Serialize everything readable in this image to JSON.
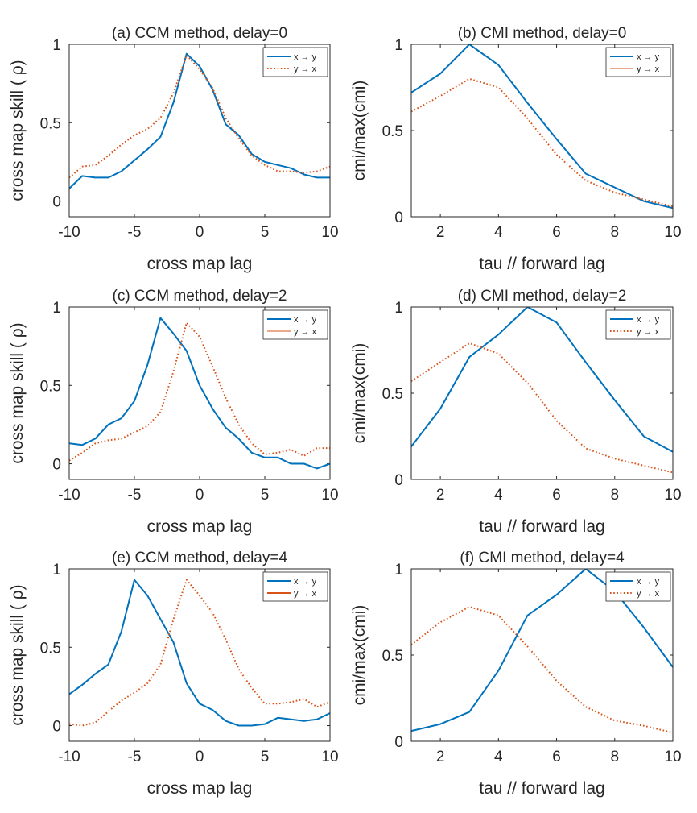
{
  "colors": {
    "series_a": "#0072BD",
    "series_b": "#D95319"
  },
  "chart_data": [
    {
      "id": "a",
      "type": "line",
      "title": "(a) CCM method, delay=0",
      "xlabel": "cross map lag",
      "ylabel": "cross map skill ( ρ)",
      "xlim": [
        -10,
        10
      ],
      "ylim": [
        -0.1,
        1
      ],
      "xticks": [
        -10,
        -5,
        0,
        5,
        10
      ],
      "yticks": [
        0,
        0.5,
        1
      ],
      "legend": "top-right",
      "series": [
        {
          "name": "x → y",
          "style": "solid",
          "width": 2,
          "x": [
            -10,
            -9,
            -8,
            -7,
            -6,
            -5,
            -4,
            -3,
            -2,
            -1,
            0,
            1,
            2,
            3,
            4,
            5,
            6,
            7,
            8,
            9,
            10
          ],
          "y": [
            0.08,
            0.16,
            0.15,
            0.15,
            0.19,
            0.26,
            0.33,
            0.41,
            0.63,
            0.94,
            0.86,
            0.71,
            0.49,
            0.42,
            0.3,
            0.25,
            0.23,
            0.21,
            0.17,
            0.15,
            0.15
          ]
        },
        {
          "name": "y → x",
          "style": "dotted",
          "width": 2,
          "x": [
            -10,
            -9,
            -8,
            -7,
            -6,
            -5,
            -4,
            -3,
            -2,
            -1,
            0,
            1,
            2,
            3,
            4,
            5,
            6,
            7,
            8,
            9,
            10
          ],
          "y": [
            0.15,
            0.22,
            0.23,
            0.29,
            0.36,
            0.42,
            0.46,
            0.53,
            0.69,
            0.93,
            0.84,
            0.72,
            0.53,
            0.4,
            0.29,
            0.23,
            0.19,
            0.19,
            0.18,
            0.19,
            0.22
          ]
        }
      ]
    },
    {
      "id": "b",
      "type": "line",
      "title": "(b) CMI method, delay=0",
      "xlabel": "tau // forward lag",
      "ylabel": "cmi/max(cmi)",
      "xlim": [
        1,
        10
      ],
      "ylim": [
        0,
        1
      ],
      "xticks": [
        2,
        4,
        6,
        8,
        10
      ],
      "yticks": [
        0,
        0.5,
        1
      ],
      "legend": "top-right",
      "series": [
        {
          "name": "x → y",
          "style": "solid",
          "width": 2,
          "x": [
            1,
            2,
            3,
            4,
            5,
            6,
            7,
            8,
            9,
            10
          ],
          "y": [
            0.72,
            0.83,
            1.0,
            0.88,
            0.66,
            0.45,
            0.25,
            0.17,
            0.09,
            0.05
          ]
        },
        {
          "name": "y → x",
          "style": "dotted",
          "width": 2,
          "legend_style": "thin",
          "x": [
            1,
            2,
            3,
            4,
            5,
            6,
            7,
            8,
            9,
            10
          ],
          "y": [
            0.61,
            0.7,
            0.8,
            0.75,
            0.57,
            0.36,
            0.21,
            0.14,
            0.1,
            0.06
          ]
        }
      ]
    },
    {
      "id": "c",
      "type": "line",
      "title": "(c) CCM method, delay=2",
      "xlabel": "cross map lag",
      "ylabel": "cross map skill ( ρ)",
      "xlim": [
        -10,
        10
      ],
      "ylim": [
        -0.1,
        1
      ],
      "xticks": [
        -10,
        -5,
        0,
        5,
        10
      ],
      "yticks": [
        0,
        0.5,
        1
      ],
      "legend": "top-right",
      "series": [
        {
          "name": "x → y",
          "style": "solid",
          "width": 2,
          "x": [
            -10,
            -9,
            -8,
            -7,
            -6,
            -5,
            -4,
            -3,
            -2,
            -1,
            0,
            1,
            2,
            3,
            4,
            5,
            6,
            7,
            8,
            9,
            10
          ],
          "y": [
            0.13,
            0.12,
            0.16,
            0.25,
            0.29,
            0.4,
            0.63,
            0.93,
            0.83,
            0.72,
            0.5,
            0.35,
            0.23,
            0.16,
            0.07,
            0.04,
            0.04,
            0.0,
            0.0,
            -0.03,
            0.0
          ]
        },
        {
          "name": "y → x",
          "style": "dotted",
          "width": 2,
          "legend_style": "thin",
          "x": [
            -10,
            -9,
            -8,
            -7,
            -6,
            -5,
            -4,
            -3,
            -2,
            -1,
            0,
            1,
            2,
            3,
            4,
            5,
            6,
            7,
            8,
            9,
            10
          ],
          "y": [
            0.02,
            0.07,
            0.13,
            0.15,
            0.16,
            0.2,
            0.24,
            0.33,
            0.59,
            0.9,
            0.81,
            0.62,
            0.42,
            0.25,
            0.13,
            0.06,
            0.07,
            0.09,
            0.05,
            0.1,
            0.1
          ]
        }
      ]
    },
    {
      "id": "d",
      "type": "line",
      "title": "(d) CMI method, delay=2",
      "xlabel": "tau // forward lag",
      "ylabel": "cmi/max(cmi)",
      "xlim": [
        1,
        10
      ],
      "ylim": [
        0,
        1
      ],
      "xticks": [
        2,
        4,
        6,
        8,
        10
      ],
      "yticks": [
        0,
        0.5,
        1
      ],
      "legend": "top-right",
      "series": [
        {
          "name": "x → y",
          "style": "solid",
          "width": 2,
          "x": [
            1,
            2,
            3,
            4,
            5,
            6,
            7,
            8,
            9,
            10
          ],
          "y": [
            0.19,
            0.41,
            0.71,
            0.84,
            1.0,
            0.91,
            0.68,
            0.46,
            0.25,
            0.16
          ]
        },
        {
          "name": "y → x",
          "style": "dotted",
          "width": 2,
          "x": [
            1,
            2,
            3,
            4,
            5,
            6,
            7,
            8,
            9,
            10
          ],
          "y": [
            0.57,
            0.68,
            0.79,
            0.73,
            0.56,
            0.34,
            0.18,
            0.12,
            0.08,
            0.04
          ]
        }
      ]
    },
    {
      "id": "e",
      "type": "line",
      "title": "(e) CCM method, delay=4",
      "xlabel": "cross map lag",
      "ylabel": "cross map skill ( ρ)",
      "xlim": [
        -10,
        10
      ],
      "ylim": [
        -0.1,
        1
      ],
      "xticks": [
        -10,
        -5,
        0,
        5,
        10
      ],
      "yticks": [
        0,
        0.5,
        1
      ],
      "legend": "top-right",
      "series": [
        {
          "name": "x → y",
          "style": "solid",
          "width": 2,
          "x": [
            -10,
            -9,
            -8,
            -7,
            -6,
            -5,
            -4,
            -3,
            -2,
            -1,
            0,
            1,
            2,
            3,
            4,
            5,
            6,
            7,
            8,
            9,
            10
          ],
          "y": [
            0.2,
            0.26,
            0.33,
            0.39,
            0.6,
            0.93,
            0.83,
            0.68,
            0.53,
            0.27,
            0.14,
            0.1,
            0.03,
            0.0,
            0.0,
            0.01,
            0.05,
            0.04,
            0.03,
            0.04,
            0.08
          ]
        },
        {
          "name": "y → x",
          "style": "dotted",
          "width": 2,
          "legend_style": "solid",
          "x": [
            -10,
            -9,
            -8,
            -7,
            -6,
            -5,
            -4,
            -3,
            -2,
            -1,
            0,
            1,
            2,
            3,
            4,
            5,
            6,
            7,
            8,
            9,
            10
          ],
          "y": [
            0.01,
            0.0,
            0.02,
            0.09,
            0.16,
            0.21,
            0.27,
            0.39,
            0.68,
            0.93,
            0.83,
            0.72,
            0.55,
            0.36,
            0.24,
            0.14,
            0.14,
            0.15,
            0.17,
            0.12,
            0.15
          ]
        }
      ]
    },
    {
      "id": "f",
      "type": "line",
      "title": "(f) CMI method, delay=4",
      "xlabel": "tau // forward lag",
      "ylabel": "cmi/max(cmi)",
      "xlim": [
        1,
        10
      ],
      "ylim": [
        0,
        1
      ],
      "xticks": [
        2,
        4,
        6,
        8,
        10
      ],
      "yticks": [
        0,
        0.5,
        1
      ],
      "legend": "top-right",
      "series": [
        {
          "name": "x → y",
          "style": "solid",
          "width": 2,
          "x": [
            1,
            2,
            3,
            4,
            5,
            6,
            7,
            8,
            9,
            10
          ],
          "y": [
            0.06,
            0.1,
            0.17,
            0.41,
            0.73,
            0.85,
            1.0,
            0.87,
            0.66,
            0.43
          ]
        },
        {
          "name": "y → x",
          "style": "dotted",
          "width": 2,
          "x": [
            1,
            2,
            3,
            4,
            5,
            6,
            7,
            8,
            9,
            10
          ],
          "y": [
            0.56,
            0.69,
            0.78,
            0.73,
            0.55,
            0.35,
            0.2,
            0.12,
            0.09,
            0.05
          ]
        }
      ]
    }
  ]
}
